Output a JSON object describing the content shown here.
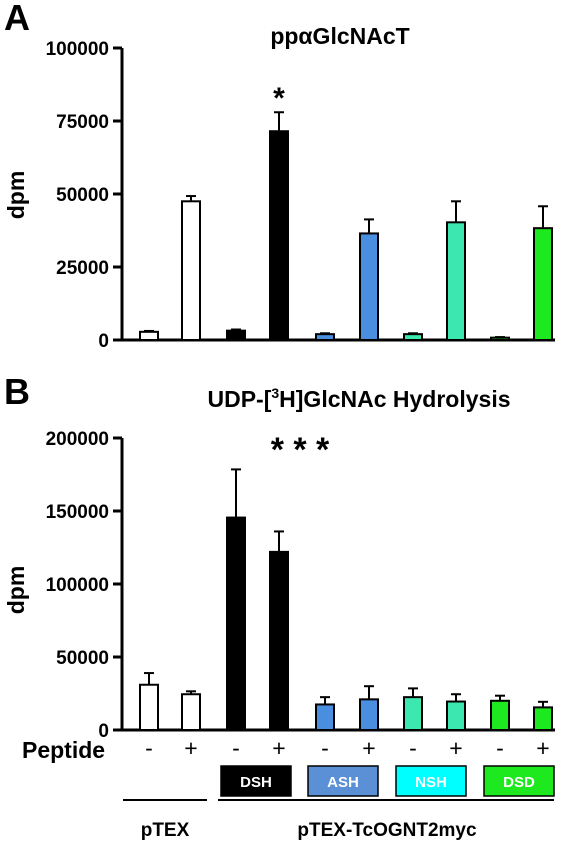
{
  "chart_data": [
    {
      "type": "bar",
      "panel_label": "A",
      "title": "ppαGlcNAcT",
      "ylabel": "dpm",
      "ylim": [
        0,
        100000
      ],
      "yticks": [
        "0",
        "25000",
        "50000",
        "75000",
        "100000"
      ],
      "ytick_values": [
        0,
        25000,
        50000,
        75000,
        100000
      ],
      "bars": [
        {
          "value": 2800,
          "error": 300,
          "color": "#ffffff"
        },
        {
          "value": 47500,
          "error": 1800,
          "color": "#ffffff"
        },
        {
          "value": 3200,
          "error": 400,
          "color": "#000000"
        },
        {
          "value": 71500,
          "error": 6500,
          "color": "#000000",
          "annotation": "*"
        },
        {
          "value": 2000,
          "error": 300,
          "color": "#4a8ee0"
        },
        {
          "value": 36500,
          "error": 4800,
          "color": "#4a8ee0"
        },
        {
          "value": 2000,
          "error": 300,
          "color": "#3de8b0"
        },
        {
          "value": 40300,
          "error": 7200,
          "color": "#3de8b0"
        },
        {
          "value": 800,
          "error": 200,
          "color": "#1ee81e"
        },
        {
          "value": 38300,
          "error": 7500,
          "color": "#1ee81e"
        }
      ]
    },
    {
      "type": "bar",
      "panel_label": "B",
      "title_prefix": "UDP-[",
      "title_sup": "3",
      "title_suffix": "H]GlcNAc Hydrolysis",
      "ylabel": "dpm",
      "ylim": [
        0,
        200000
      ],
      "yticks": [
        "0",
        "50000",
        "100000",
        "150000",
        "200000"
      ],
      "ytick_values": [
        0,
        50000,
        100000,
        150000,
        200000
      ],
      "bars": [
        {
          "value": 31000,
          "error": 8000,
          "color": "#ffffff"
        },
        {
          "value": 24500,
          "error": 2000,
          "color": "#ffffff"
        },
        {
          "value": 145500,
          "error": 33000,
          "color": "#000000"
        },
        {
          "value": 122000,
          "error": 14000,
          "color": "#000000"
        },
        {
          "value": 17500,
          "error": 5000,
          "color": "#4a8ee0"
        },
        {
          "value": 21000,
          "error": 9000,
          "color": "#4a8ee0"
        },
        {
          "value": 22500,
          "error": 6000,
          "color": "#3de8b0"
        },
        {
          "value": 19500,
          "error": 5000,
          "color": "#3de8b0"
        },
        {
          "value": 20000,
          "error": 3500,
          "color": "#1ee81e"
        },
        {
          "value": 15500,
          "error": 3800,
          "color": "#1ee81e"
        }
      ],
      "annotation": "* * *",
      "peptide_label": "Peptide",
      "peptide_signs": [
        "-",
        "+",
        "-",
        "+",
        "-",
        "+",
        "-",
        "+",
        "-",
        "+"
      ],
      "constructs": [
        {
          "label": "DSH",
          "bg": "#000000",
          "fg": "#ffffff"
        },
        {
          "label": "ASH",
          "bg": "#5b8fd6",
          "fg": "#ffffff"
        },
        {
          "label": "NSH",
          "bg": "#00ffff",
          "fg": "#ffffff"
        },
        {
          "label": "DSD",
          "bg": "#1ee81e",
          "fg": "#ffffff"
        }
      ],
      "groups": [
        "pTEX",
        "pTEX-TcOGNT2myc"
      ]
    }
  ]
}
